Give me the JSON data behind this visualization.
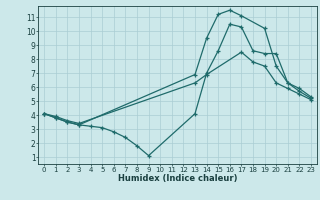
{
  "xlabel": "Humidex (Indice chaleur)",
  "background_color": "#cce8ea",
  "grid_color": "#aacdd4",
  "line_color": "#1f6b6b",
  "xlim": [
    -0.5,
    23.5
  ],
  "ylim": [
    0.5,
    11.8
  ],
  "xticks": [
    0,
    1,
    2,
    3,
    4,
    5,
    6,
    7,
    8,
    9,
    10,
    11,
    12,
    13,
    14,
    15,
    16,
    17,
    18,
    19,
    20,
    21,
    22,
    23
  ],
  "yticks": [
    1,
    2,
    3,
    4,
    5,
    6,
    7,
    8,
    9,
    10,
    11
  ],
  "line1_x": [
    0,
    1,
    2,
    3,
    4,
    5,
    6,
    7,
    8,
    9,
    13,
    14,
    15,
    16,
    17,
    18,
    19,
    20,
    21,
    22,
    23
  ],
  "line1_y": [
    4.1,
    3.8,
    3.5,
    3.3,
    3.2,
    3.1,
    2.8,
    2.4,
    1.8,
    1.1,
    4.1,
    7.0,
    8.6,
    10.5,
    10.3,
    8.6,
    8.4,
    8.4,
    6.3,
    5.7,
    5.2
  ],
  "line2_x": [
    0,
    1,
    2,
    3,
    13,
    14,
    15,
    16,
    17,
    19,
    20,
    21,
    22,
    23
  ],
  "line2_y": [
    4.1,
    3.8,
    3.5,
    3.3,
    6.9,
    9.5,
    11.2,
    11.5,
    11.1,
    10.2,
    7.5,
    6.3,
    5.9,
    5.3
  ],
  "line3_x": [
    0,
    1,
    2,
    3,
    13,
    14,
    17,
    18,
    19,
    20,
    21,
    22,
    23
  ],
  "line3_y": [
    4.1,
    3.9,
    3.6,
    3.4,
    6.3,
    6.9,
    8.5,
    7.8,
    7.5,
    6.3,
    5.9,
    5.5,
    5.1
  ]
}
